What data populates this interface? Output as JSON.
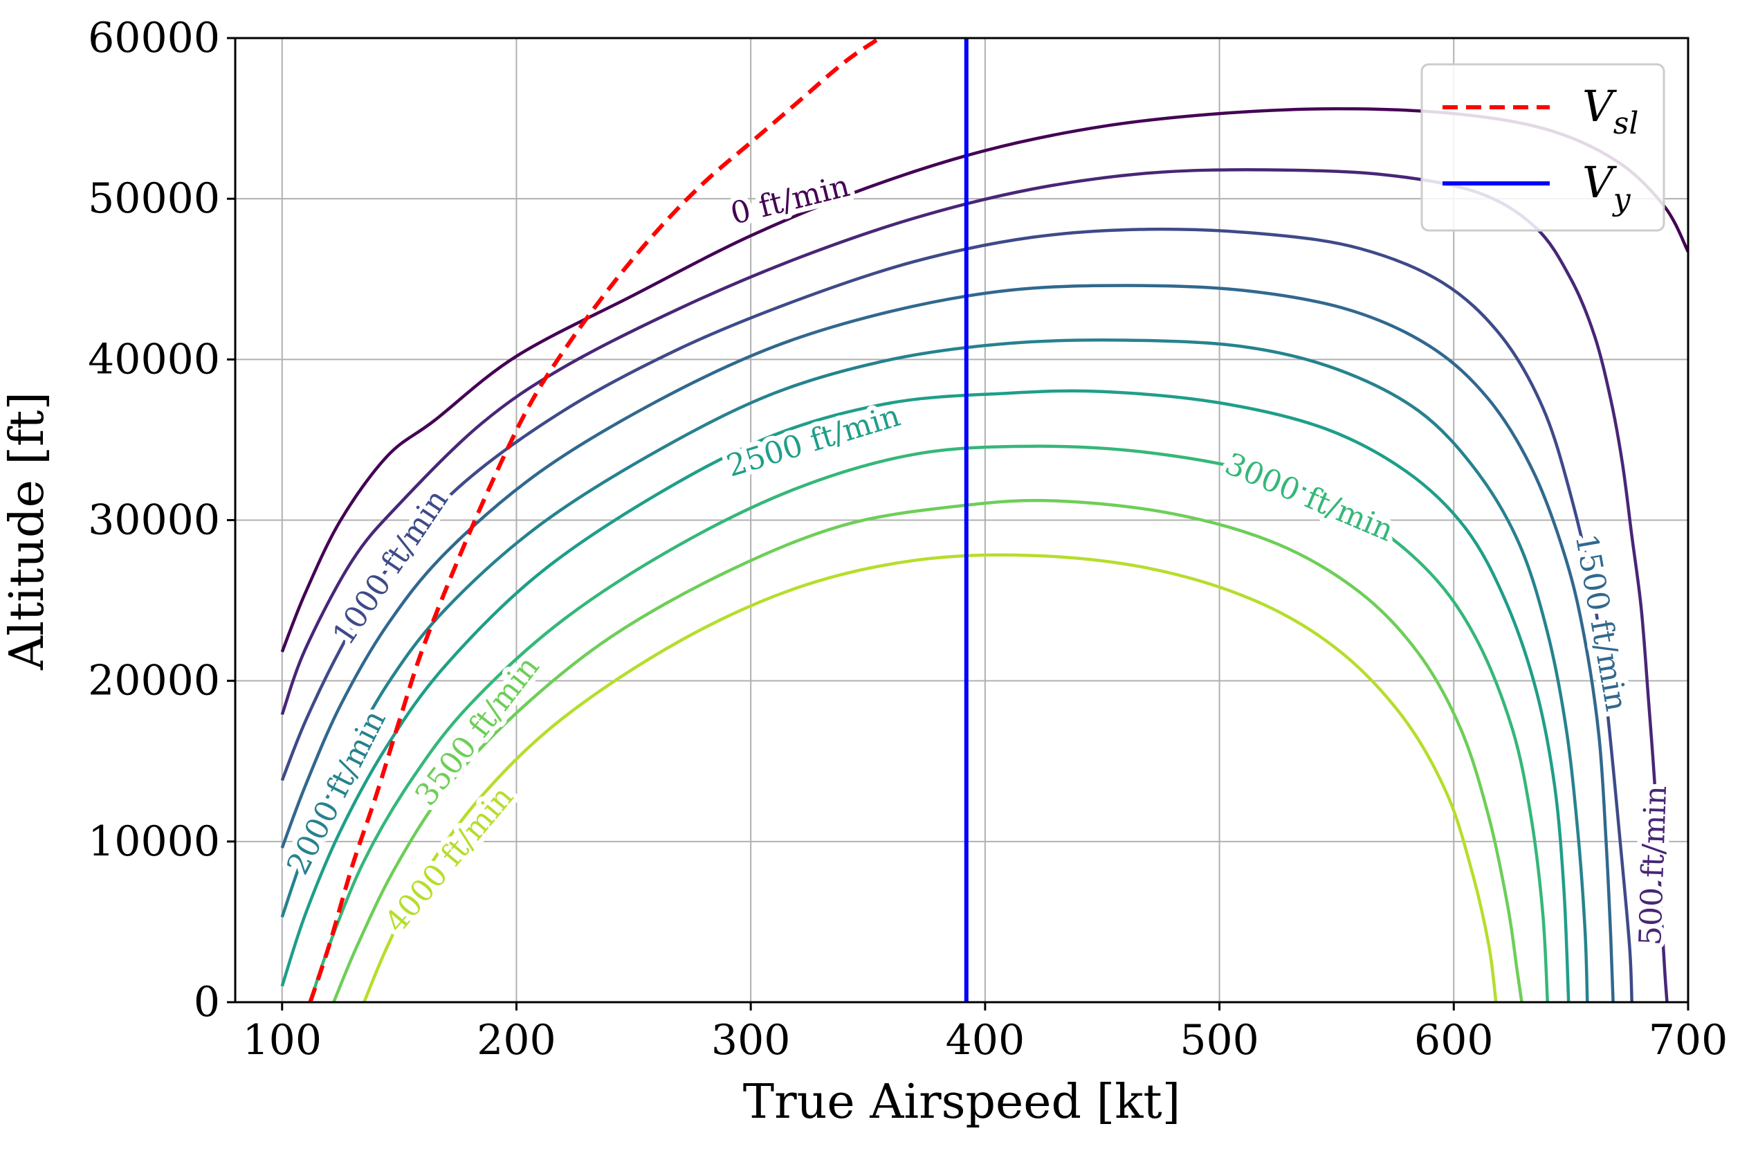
{
  "chart_data": {
    "type": "line",
    "title": "",
    "xlabel": "True Airspeed [kt]",
    "ylabel": "Altitude [ft]",
    "xlim": [
      80,
      700
    ],
    "ylim": [
      0,
      60000
    ],
    "xticks": [
      100,
      200,
      300,
      400,
      500,
      600,
      700
    ],
    "yticks": [
      0,
      10000,
      20000,
      30000,
      40000,
      50000,
      60000
    ],
    "grid": true,
    "legend_position": "top-right",
    "legend": [
      {
        "main": "V",
        "sub": "sl",
        "style": "dashed",
        "color": "#ff0000"
      },
      {
        "main": "V",
        "sub": "y",
        "style": "solid",
        "color": "#0000ff"
      }
    ],
    "contour_label_unit": "ft/min",
    "contours": [
      {
        "level": 0,
        "label": "0 ft/min",
        "color": "#440154",
        "points": [
          [
            100,
            21800
          ],
          [
            110,
            25500
          ],
          [
            125,
            30000
          ],
          [
            145,
            34000
          ],
          [
            165,
            36200
          ],
          [
            200,
            40200
          ],
          [
            250,
            44000
          ],
          [
            300,
            47700
          ],
          [
            350,
            50700
          ],
          [
            400,
            53000
          ],
          [
            450,
            54500
          ],
          [
            500,
            55300
          ],
          [
            550,
            55600
          ],
          [
            600,
            55300
          ],
          [
            640,
            54300
          ],
          [
            670,
            52300
          ],
          [
            690,
            49500
          ],
          [
            700,
            46700
          ]
        ],
        "label_at": [
          317,
          49800
        ],
        "label_angle": -14
      },
      {
        "level": 500,
        "label": "500 ft/min",
        "color": "#482677",
        "points": [
          [
            100,
            17900
          ],
          [
            110,
            22000
          ],
          [
            130,
            27500
          ],
          [
            150,
            31000
          ],
          [
            185,
            36000
          ],
          [
            220,
            39500
          ],
          [
            270,
            43200
          ],
          [
            320,
            46300
          ],
          [
            370,
            48800
          ],
          [
            420,
            50600
          ],
          [
            470,
            51600
          ],
          [
            520,
            51800
          ],
          [
            570,
            51500
          ],
          [
            610,
            50400
          ],
          [
            635,
            48200
          ],
          [
            650,
            45000
          ],
          [
            660,
            41500
          ],
          [
            667,
            37500
          ],
          [
            672,
            33500
          ],
          [
            676,
            29000
          ],
          [
            680,
            24500
          ],
          [
            683,
            19000
          ],
          [
            686,
            13000
          ],
          [
            688,
            7000
          ],
          [
            690,
            2000
          ],
          [
            691,
            0
          ]
        ],
        "label_at": [
          686,
          8500
        ],
        "label_angle": -88
      },
      {
        "level": 1000,
        "label": "1000 ft/min",
        "color": "#3e4a89",
        "points": [
          [
            100,
            13800
          ],
          [
            110,
            17500
          ],
          [
            125,
            22000
          ],
          [
            145,
            27000
          ],
          [
            175,
            32000
          ],
          [
            220,
            36800
          ],
          [
            270,
            40700
          ],
          [
            320,
            43700
          ],
          [
            370,
            46100
          ],
          [
            420,
            47600
          ],
          [
            470,
            48100
          ],
          [
            520,
            47800
          ],
          [
            560,
            46900
          ],
          [
            595,
            44800
          ],
          [
            620,
            41500
          ],
          [
            638,
            37000
          ],
          [
            650,
            31500
          ],
          [
            660,
            25000
          ],
          [
            666,
            17500
          ],
          [
            671,
            10000
          ],
          [
            675,
            3500
          ],
          [
            676,
            0
          ]
        ],
        "label_at": [
          147,
          27000
        ],
        "label_angle": -56
      },
      {
        "level": 1500,
        "label": "1500 ft/min",
        "color": "#31688e",
        "points": [
          [
            100,
            9600
          ],
          [
            110,
            13500
          ],
          [
            125,
            18500
          ],
          [
            145,
            23500
          ],
          [
            170,
            28000
          ],
          [
            210,
            33000
          ],
          [
            260,
            37400
          ],
          [
            310,
            40800
          ],
          [
            360,
            43000
          ],
          [
            410,
            44300
          ],
          [
            460,
            44600
          ],
          [
            510,
            44300
          ],
          [
            555,
            43100
          ],
          [
            590,
            40800
          ],
          [
            615,
            37500
          ],
          [
            634,
            33000
          ],
          [
            648,
            27500
          ],
          [
            656,
            22500
          ],
          [
            662,
            16500
          ],
          [
            665,
            10000
          ],
          [
            667,
            4000
          ],
          [
            668,
            0
          ]
        ],
        "label_at": [
          662,
          23600
        ],
        "label_angle": 80
      },
      {
        "level": 2000,
        "label": "2000 ft/min",
        "color": "#26828e",
        "points": [
          [
            100,
            5300
          ],
          [
            110,
            9500
          ],
          [
            125,
            14500
          ],
          [
            145,
            19800
          ],
          [
            170,
            24500
          ],
          [
            210,
            29700
          ],
          [
            260,
            34300
          ],
          [
            310,
            37900
          ],
          [
            360,
            40000
          ],
          [
            410,
            41000
          ],
          [
            460,
            41200
          ],
          [
            510,
            40800
          ],
          [
            550,
            39400
          ],
          [
            585,
            36800
          ],
          [
            610,
            33000
          ],
          [
            628,
            28500
          ],
          [
            640,
            23000
          ],
          [
            648,
            17000
          ],
          [
            653,
            10500
          ],
          [
            656,
            4500
          ],
          [
            657,
            0
          ]
        ],
        "label_at": [
          124,
          13000
        ],
        "label_angle": -63
      },
      {
        "level": 2500,
        "label": "2500 ft/min",
        "color": "#1f9e89",
        "points": [
          [
            100,
            1000
          ],
          [
            110,
            5500
          ],
          [
            125,
            10700
          ],
          [
            145,
            16000
          ],
          [
            170,
            21000
          ],
          [
            210,
            26700
          ],
          [
            260,
            31600
          ],
          [
            310,
            35300
          ],
          [
            360,
            37300
          ],
          [
            410,
            37900
          ],
          [
            450,
            38000
          ],
          [
            500,
            37300
          ],
          [
            545,
            35700
          ],
          [
            580,
            33000
          ],
          [
            605,
            29500
          ],
          [
            622,
            25000
          ],
          [
            635,
            19500
          ],
          [
            643,
            13500
          ],
          [
            647,
            7000
          ],
          [
            649,
            0
          ]
        ],
        "label_at": [
          327,
          34800
        ],
        "label_angle": -17
      },
      {
        "level": 3000,
        "label": "3000 ft/min",
        "color": "#35b779",
        "points": [
          [
            112,
            0
          ],
          [
            120,
            3500
          ],
          [
            135,
            8800
          ],
          [
            155,
            13800
          ],
          [
            180,
            18500
          ],
          [
            220,
            23800
          ],
          [
            270,
            28500
          ],
          [
            320,
            32000
          ],
          [
            370,
            34100
          ],
          [
            420,
            34600
          ],
          [
            470,
            34200
          ],
          [
            520,
            32800
          ],
          [
            560,
            30200
          ],
          [
            590,
            26700
          ],
          [
            610,
            22500
          ],
          [
            625,
            17000
          ],
          [
            633,
            11500
          ],
          [
            638,
            5500
          ],
          [
            640,
            0
          ]
        ],
        "label_at": [
          538,
          31300
        ],
        "label_angle": 23
      },
      {
        "level": 3500,
        "label": "3500 ft/min",
        "color": "#6ece58",
        "points": [
          [
            122,
            0
          ],
          [
            132,
            3500
          ],
          [
            148,
            8300
          ],
          [
            170,
            13300
          ],
          [
            200,
            18000
          ],
          [
            240,
            22700
          ],
          [
            290,
            26800
          ],
          [
            340,
            29700
          ],
          [
            390,
            30900
          ],
          [
            430,
            31200
          ],
          [
            480,
            30400
          ],
          [
            525,
            28500
          ],
          [
            560,
            25500
          ],
          [
            585,
            21700
          ],
          [
            603,
            17000
          ],
          [
            615,
            11500
          ],
          [
            623,
            6000
          ],
          [
            627,
            2000
          ],
          [
            629,
            0
          ]
        ],
        "label_at": [
          184,
          16800
        ],
        "label_angle": -52
      },
      {
        "level": 4000,
        "label": "4000 ft/min",
        "color": "#b5de2b",
        "points": [
          [
            135,
            0
          ],
          [
            145,
            3500
          ],
          [
            160,
            7800
          ],
          [
            185,
            12800
          ],
          [
            220,
            17700
          ],
          [
            270,
            22500
          ],
          [
            320,
            25800
          ],
          [
            370,
            27500
          ],
          [
            420,
            27800
          ],
          [
            470,
            27000
          ],
          [
            515,
            25000
          ],
          [
            550,
            22000
          ],
          [
            578,
            17800
          ],
          [
            597,
            13000
          ],
          [
            608,
            8000
          ],
          [
            615,
            3500
          ],
          [
            618,
            0
          ]
        ],
        "label_at": [
          172,
          8800
        ],
        "label_angle": -50
      }
    ],
    "series": [
      {
        "name": "V_sl",
        "style": "dashed",
        "color": "#ff0000",
        "points": [
          [
            112,
            0
          ],
          [
            120,
            3500
          ],
          [
            130,
            8500
          ],
          [
            140,
            12800
          ],
          [
            150,
            17500
          ],
          [
            160,
            22000
          ],
          [
            175,
            27500
          ],
          [
            190,
            32500
          ],
          [
            205,
            37000
          ],
          [
            220,
            40500
          ],
          [
            240,
            44500
          ],
          [
            260,
            48000
          ],
          [
            280,
            51000
          ],
          [
            300,
            53500
          ],
          [
            320,
            56000
          ],
          [
            340,
            58500
          ],
          [
            355,
            60000
          ]
        ]
      },
      {
        "name": "V_y",
        "style": "solid",
        "color": "#0000ff",
        "points": [
          [
            392,
            0
          ],
          [
            392,
            60000
          ]
        ]
      }
    ]
  }
}
